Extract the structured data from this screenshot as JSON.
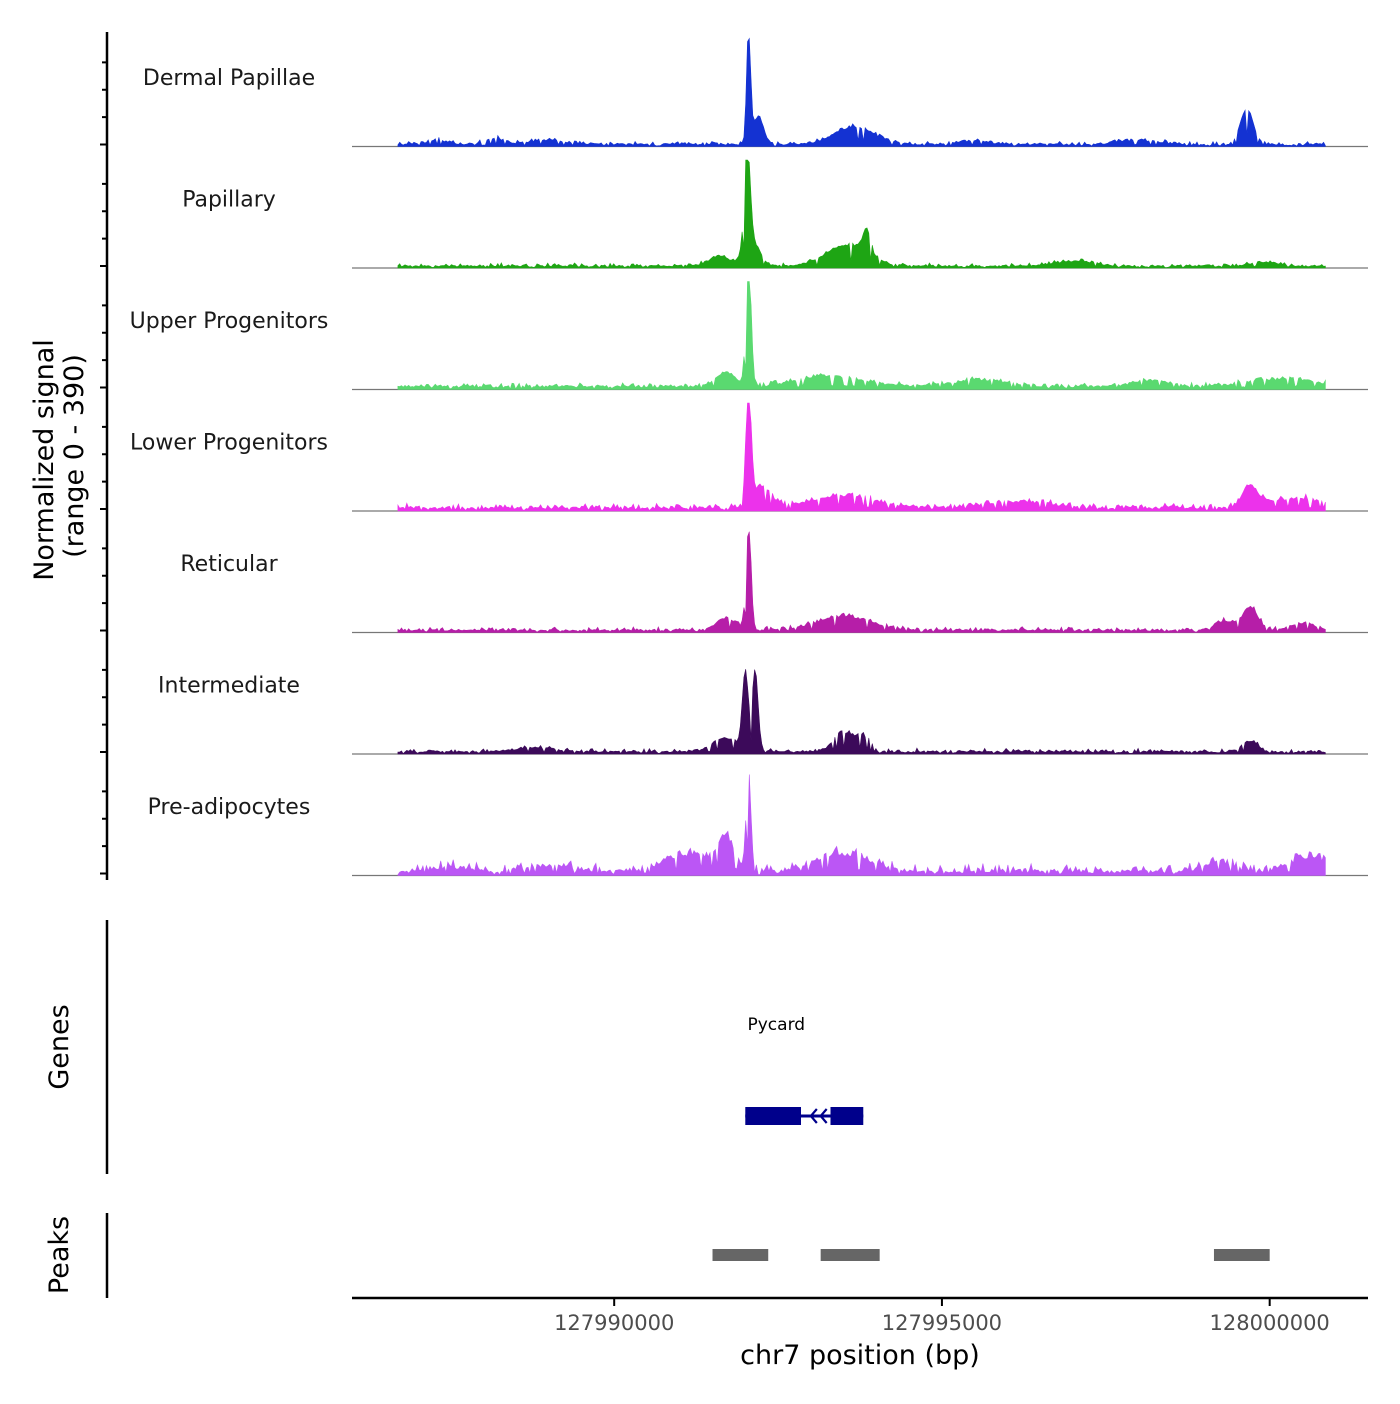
{
  "chart_data": {
    "type": "area",
    "title": "",
    "region": {
      "chrom": "chr7",
      "start": 127986000,
      "end": 128001500
    },
    "data_range": {
      "start": 127986700,
      "end": 128000850
    },
    "y_axis": {
      "label_line1": "Normalized signal",
      "label_line2": "(range 0 - 390)",
      "ylim": [
        0,
        390
      ]
    },
    "x_axis": {
      "label": "chr7 position (bp)",
      "ticks": [
        127990000,
        127995000,
        128000000
      ],
      "tick_labels": [
        "127990000",
        "127995000",
        "128000000"
      ]
    },
    "tracks": [
      {
        "name": "Dermal Papillae",
        "color": "#1432D2",
        "peaks": [
          [
            127992050,
            330,
            30
          ],
          [
            127992200,
            80,
            80
          ],
          [
            127993650,
            50,
            300
          ],
          [
            127999650,
            100,
            100
          ],
          [
            127987300,
            12,
            150
          ],
          [
            127988200,
            16,
            150
          ],
          [
            127989000,
            12,
            250
          ],
          [
            127995500,
            10,
            200
          ],
          [
            127998000,
            12,
            300
          ]
        ],
        "baseline": 6,
        "noise": 8
      },
      {
        "name": "Papillary",
        "color": "#1EA514",
        "peaks": [
          [
            127992030,
            290,
            45
          ],
          [
            127992100,
            70,
            120
          ],
          [
            127993550,
            60,
            320
          ],
          [
            127993850,
            70,
            60
          ],
          [
            127991600,
            30,
            150
          ],
          [
            127997000,
            14,
            300
          ],
          [
            127999900,
            12,
            200
          ]
        ],
        "baseline": 5,
        "noise": 8
      },
      {
        "name": "Upper Progenitors",
        "color": "#5AD970",
        "peaks": [
          [
            127992050,
            350,
            40
          ],
          [
            127991700,
            40,
            150
          ],
          [
            127993300,
            30,
            500
          ],
          [
            127995600,
            20,
            400
          ],
          [
            127998200,
            18,
            300
          ],
          [
            128000200,
            22,
            500
          ]
        ],
        "baseline": 8,
        "noise": 10
      },
      {
        "name": "Lower Progenitors",
        "color": "#EC32EB",
        "peaks": [
          [
            127992050,
            330,
            40
          ],
          [
            127992250,
            60,
            150
          ],
          [
            127993500,
            35,
            500
          ],
          [
            127999700,
            60,
            120
          ],
          [
            127996200,
            18,
            500
          ],
          [
            128000400,
            28,
            400
          ]
        ],
        "baseline": 8,
        "noise": 12
      },
      {
        "name": "Reticular",
        "color": "#B61EA8",
        "peaks": [
          [
            127992050,
            290,
            40
          ],
          [
            127991700,
            35,
            150
          ],
          [
            127993500,
            40,
            400
          ],
          [
            127999700,
            65,
            120
          ],
          [
            127999300,
            25,
            150
          ],
          [
            128000500,
            18,
            200
          ]
        ],
        "baseline": 6,
        "noise": 10
      },
      {
        "name": "Intermediate",
        "color": "#3C0A5A",
        "peaks": [
          [
            127992000,
            220,
            45
          ],
          [
            127992150,
            230,
            45
          ],
          [
            127991700,
            40,
            200
          ],
          [
            127993500,
            55,
            150
          ],
          [
            127993800,
            40,
            100
          ],
          [
            127999700,
            30,
            120
          ],
          [
            127988800,
            12,
            300
          ]
        ],
        "baseline": 6,
        "noise": 9
      },
      {
        "name": "Pre-adipocytes",
        "color": "#BB56F5",
        "peaks": [
          [
            127992050,
            280,
            35
          ],
          [
            127991700,
            85,
            120
          ],
          [
            127991200,
            45,
            400
          ],
          [
            127993500,
            50,
            400
          ],
          [
            127999200,
            30,
            200
          ],
          [
            128000600,
            40,
            300
          ],
          [
            127987500,
            12,
            300
          ],
          [
            127989000,
            18,
            300
          ]
        ],
        "baseline": 10,
        "noise": 22
      }
    ],
    "genes": {
      "label": "Genes",
      "items": [
        {
          "name": "Pycard",
          "start": 127992000,
          "end": 127993800,
          "strand": "-",
          "exons": [
            [
              127992000,
              127992850
            ],
            [
              127993300,
              127993800
            ]
          ],
          "intron_marks": [
            127993000,
            127993150
          ]
        }
      ]
    },
    "peaks": {
      "label": "Peaks",
      "items": [
        [
          127991500,
          127992350
        ],
        [
          127993150,
          127994050
        ],
        [
          127999150,
          128000000
        ]
      ],
      "color": "#666666"
    }
  }
}
